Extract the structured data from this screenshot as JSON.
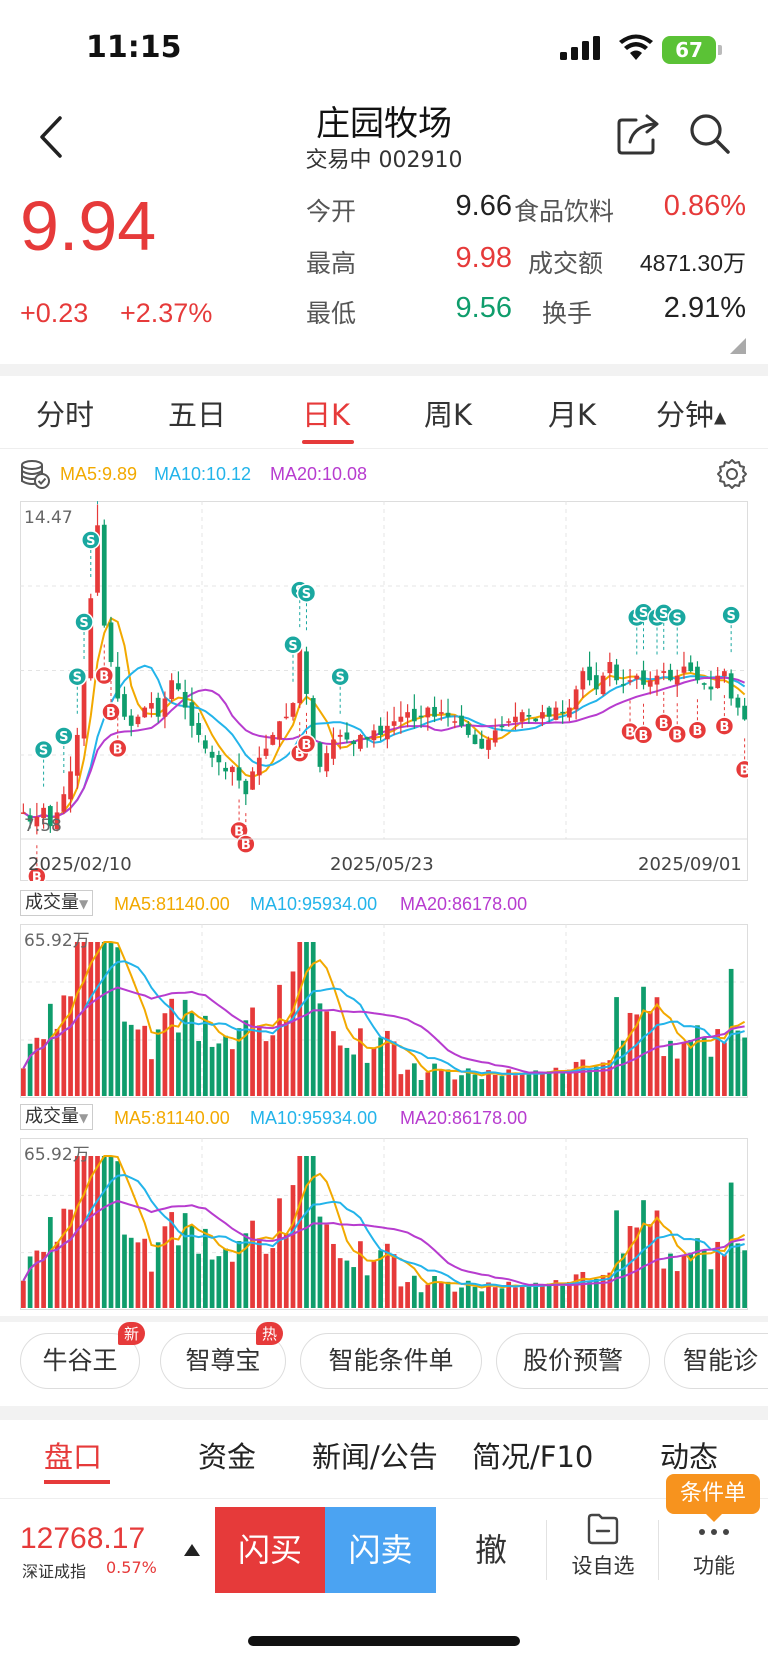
{
  "status": {
    "time": "11:15",
    "battery": "67"
  },
  "header": {
    "name": "庄园牧场",
    "sub": "交易中 002910"
  },
  "quote": {
    "price": "9.94",
    "change": "+0.23",
    "change_pct": "+2.37%",
    "open_label": "今开",
    "open": "9.66",
    "high_label": "最高",
    "high": "9.98",
    "low_label": "最低",
    "low": "9.56",
    "industry": "食品饮料",
    "industry_pct": "0.86%",
    "amount_label": "成交额",
    "amount": "4871.30万",
    "turnover_label": "换手",
    "turnover": "2.91%"
  },
  "tabs": [
    "分时",
    "五日",
    "日K",
    "周K",
    "月K",
    "分钟"
  ],
  "legend": {
    "ma5": "MA5:9.89",
    "ma10": "MA10:10.12",
    "ma20": "MA20:10.08"
  },
  "chart": {
    "ymax_label": "14.47",
    "ymin_label": "7.58",
    "dates": [
      "2025/02/10",
      "2025/05/23",
      "2025/09/01"
    ]
  },
  "volume": {
    "selector": "成交量",
    "ma5": "MA5:81140.00",
    "ma10": "MA10:95934.00",
    "ma20": "MA20:86178.00",
    "max_label": "65.92万"
  },
  "pills": [
    {
      "label": "牛谷王",
      "badge": "新"
    },
    {
      "label": "智尊宝",
      "badge": "热"
    },
    {
      "label": "智能条件单"
    },
    {
      "label": "股价预警"
    },
    {
      "label": "智能诊"
    }
  ],
  "bottom_tabs": [
    "盘口",
    "资金",
    "新闻/公告",
    "简况/F10",
    "动态"
  ],
  "tradebar": {
    "index_value": "12768.17",
    "index_name": "深证成指",
    "index_pct": "0.57%",
    "flash_buy": "闪买",
    "flash_sell": "闪卖",
    "cancel": "撤",
    "watch": "设自选",
    "func": "功能",
    "cond_badge": "条件单"
  },
  "colors": {
    "up": "#e63a3a",
    "down": "#0f9d6c",
    "ma5": "#f2a900",
    "ma10": "#23b4ea",
    "ma20": "#b73ccf"
  },
  "chart_data": {
    "type": "candlestick",
    "y_range": [
      7.58,
      14.47
    ],
    "x_ticks": [
      "2025/02/10",
      "2025/05/23",
      "2025/09/01"
    ],
    "ma_values": {
      "MA5": 9.89,
      "MA10": 10.12,
      "MA20": 10.08
    },
    "closes": [
      7.9,
      7.7,
      7.8,
      8.0,
      7.6,
      7.9,
      8.3,
      8.8,
      9.6,
      10.8,
      12.6,
      14.2,
      12.0,
      11.2,
      10.4,
      10.0,
      9.8,
      10.0,
      10.2,
      10.3,
      10.0,
      10.4,
      10.8,
      10.6,
      10.2,
      9.8,
      9.6,
      9.3,
      9.1,
      9.0,
      8.8,
      8.9,
      8.6,
      8.3,
      8.8,
      9.1,
      9.3,
      9.6,
      9.9,
      10.0,
      10.3,
      11.5,
      10.5,
      9.4,
      8.9,
      9.2,
      9.5,
      9.6,
      9.5,
      9.4,
      9.6,
      9.5,
      9.7,
      9.6,
      9.8,
      9.9,
      10.0,
      10.1,
      9.9,
      10.0,
      10.2,
      10.0,
      10.1,
      10.0,
      9.9,
      9.8,
      9.6,
      9.4,
      9.3,
      9.5,
      9.7,
      9.8,
      9.9,
      10.0,
      10.1,
      10.0,
      9.9,
      10.1,
      10.0,
      10.2,
      10.1,
      10.2,
      10.6,
      11.0,
      10.8,
      10.6,
      10.9,
      11.2,
      10.8,
      10.7,
      10.8,
      10.9,
      10.7,
      10.8,
      10.9,
      11.0,
      10.8,
      10.9,
      11.1,
      11.0,
      10.8,
      10.7,
      10.6,
      10.9,
      11.0,
      10.4,
      10.2,
      9.94
    ],
    "volume_max": "65.92万",
    "volume_ma": {
      "MA5": 81140.0,
      "MA10": 95934.0,
      "MA20": 86178.0
    }
  }
}
